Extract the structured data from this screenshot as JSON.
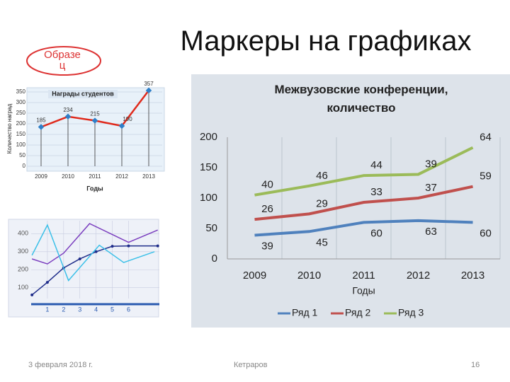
{
  "slide": {
    "title": "Маркеры на графиках",
    "stamp": "Образец",
    "footer": {
      "date": "3 февраля 2018 г.",
      "author": "Кетраров",
      "page": "16"
    }
  },
  "chart_data": [
    {
      "type": "line",
      "stacked": true,
      "title": "Межвузовские конференции, количество",
      "xlabel": "Годы",
      "categories": [
        "2009",
        "2010",
        "2011",
        "2012",
        "2013"
      ],
      "series": [
        {
          "name": "Ряд 1",
          "color": "#4f81bd",
          "values": [
            39,
            45,
            60,
            63,
            60
          ]
        },
        {
          "name": "Ряд 2",
          "color": "#c0504d",
          "values": [
            26,
            29,
            33,
            37,
            59
          ]
        },
        {
          "name": "Ряд 3",
          "color": "#9bbb59",
          "values": [
            40,
            46,
            44,
            39,
            64
          ]
        }
      ],
      "ylim": [
        0,
        200
      ],
      "yticks": [
        0,
        50,
        100,
        150,
        200
      ],
      "grid": "x",
      "legend": "bottom"
    },
    {
      "type": "line",
      "title": "Награды студентов",
      "xlabel": "Годы",
      "ylabel": "Количество наград",
      "categories": [
        "2009",
        "2010",
        "2011",
        "2012",
        "2013"
      ],
      "values": [
        185,
        234,
        215,
        190,
        357
      ],
      "color": "#e02a1c",
      "marker_color": "#2f7fc8",
      "ylim": [
        0,
        350
      ],
      "yticks": [
        0,
        50,
        100,
        150,
        200,
        250,
        300,
        350
      ],
      "grid": true
    },
    {
      "type": "line",
      "series": [
        {
          "color": "#1f2d8a",
          "x": [
            0.05,
            1,
            2,
            3,
            4,
            5,
            6,
            7.8
          ],
          "values": [
            60,
            130,
            210,
            260,
            300,
            330,
            332,
            332
          ]
        },
        {
          "color": "#7b3fbf",
          "x": [
            0.05,
            1,
            2,
            3.6,
            6,
            7.8
          ],
          "values": [
            260,
            232,
            292,
            456,
            352,
            420
          ]
        },
        {
          "color": "#3cc0e8",
          "x": [
            0.05,
            1,
            2.3,
            4.2,
            5.7,
            7.6
          ],
          "values": [
            280,
            448,
            140,
            336,
            240,
            300
          ]
        }
      ],
      "xlim": [
        0,
        7.9
      ],
      "ylim": [
        40,
        472
      ],
      "xticks": [
        1,
        2,
        3,
        4,
        5,
        6
      ],
      "yticks": [
        100,
        200,
        300,
        400
      ],
      "grid": true
    }
  ]
}
